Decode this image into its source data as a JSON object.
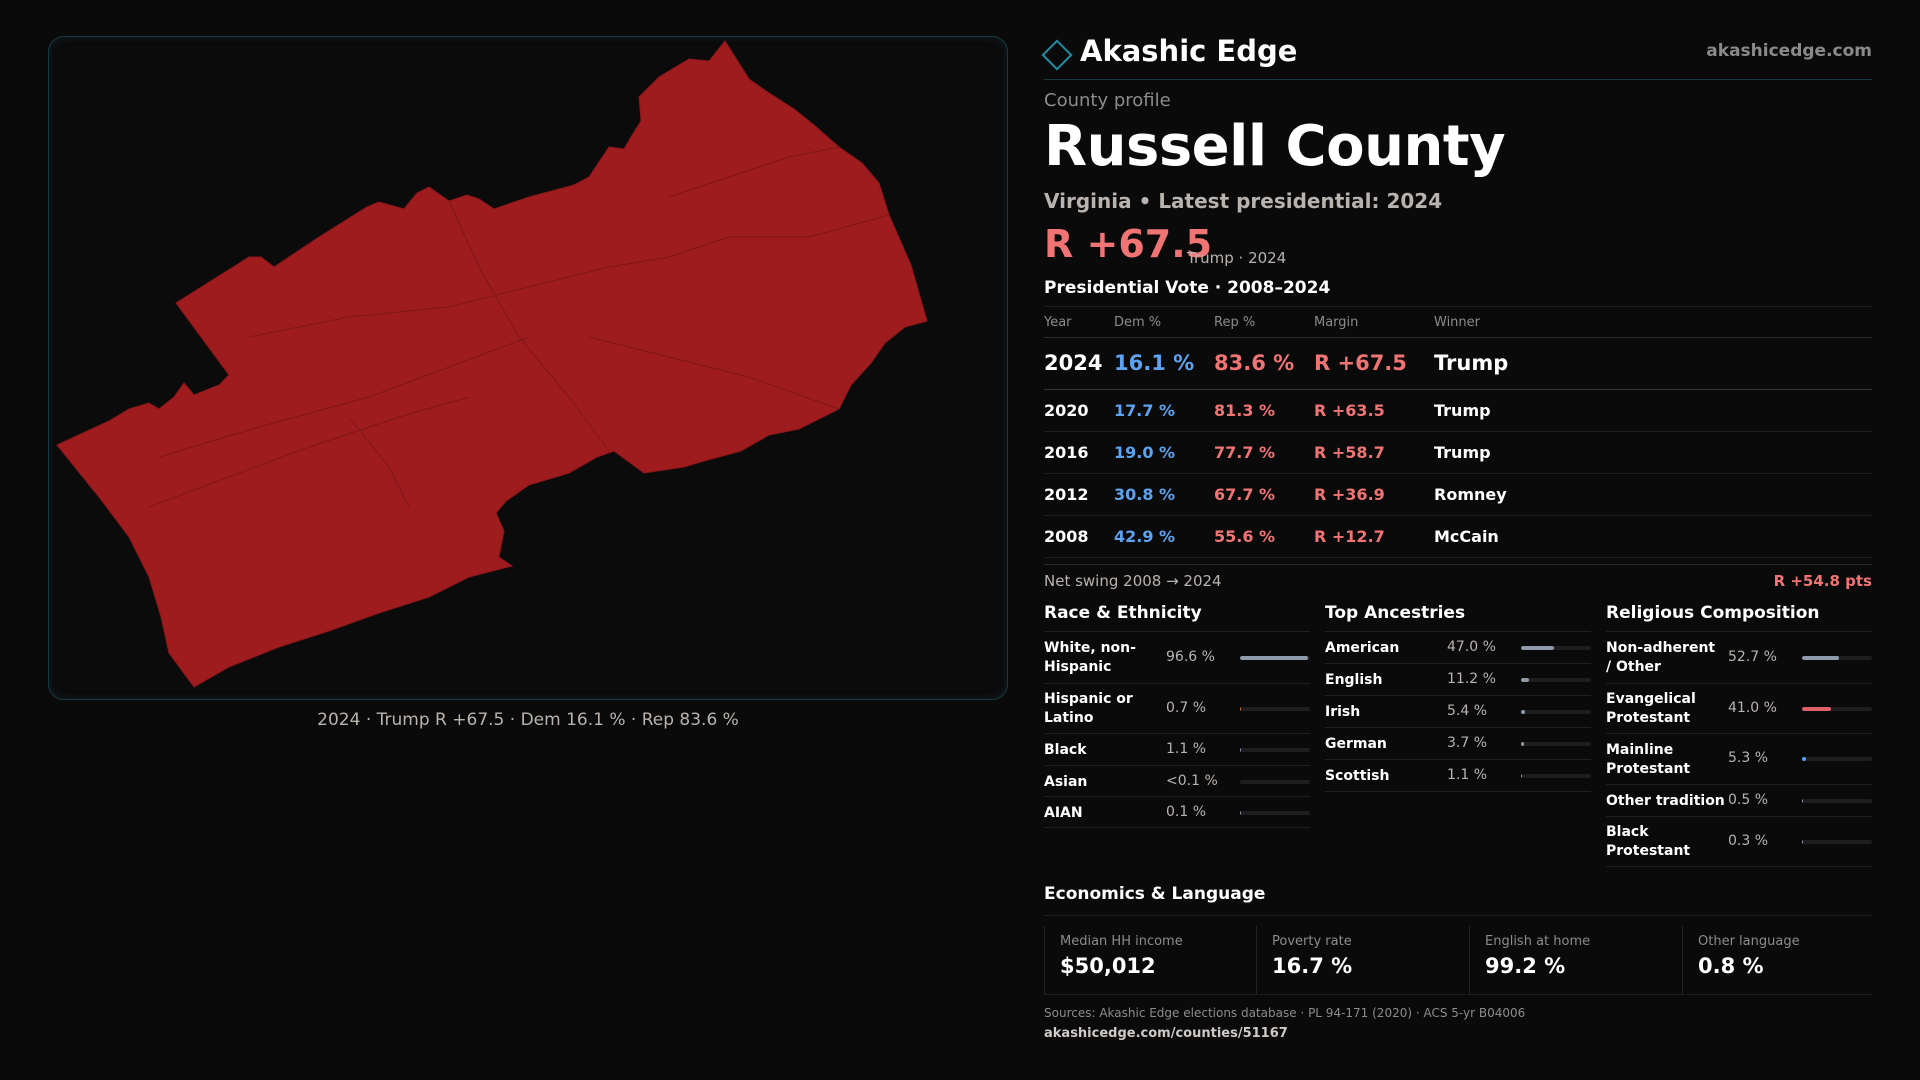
{
  "brand": {
    "name": "Akashic Edge",
    "url": "akashicedge.com"
  },
  "profile": {
    "eyebrow": "County profile",
    "county": "Russell County",
    "subline": "Virginia • Latest presidential: 2024",
    "margin": "R +67.5",
    "margin_note": "Trump · 2024"
  },
  "map": {
    "caption": "2024 · Trump R +67.5 · Dem 16.1 % · Rep 83.6 %",
    "fill_color": "#9e1b1e",
    "border_color": "#173a44"
  },
  "vote": {
    "title": "Presidential Vote · 2008–2024",
    "headers": {
      "year": "Year",
      "dem": "Dem %",
      "rep": "Rep %",
      "margin": "Margin",
      "winner": "Winner"
    },
    "rows": [
      {
        "year": "2024",
        "dem": "16.1 %",
        "rep": "83.6 %",
        "margin": "R +67.5",
        "winner": "Trump"
      },
      {
        "year": "2020",
        "dem": "17.7 %",
        "rep": "81.3 %",
        "margin": "R +63.5",
        "winner": "Trump"
      },
      {
        "year": "2016",
        "dem": "19.0 %",
        "rep": "77.7 %",
        "margin": "R +58.7",
        "winner": "Trump"
      },
      {
        "year": "2012",
        "dem": "30.8 %",
        "rep": "67.7 %",
        "margin": "R +36.9",
        "winner": "Romney"
      },
      {
        "year": "2008",
        "dem": "42.9 %",
        "rep": "55.6 %",
        "margin": "R +12.7",
        "winner": "McCain"
      }
    ],
    "swing_label": "Net swing 2008 → 2024",
    "swing_value": "R +54.8 pts"
  },
  "demographics": {
    "race": {
      "title": "Race & Ethnicity",
      "items": [
        {
          "label": "White, non-Hispanic",
          "value": "96.6 %",
          "fraction": 0.966,
          "color": "#8f9aad"
        },
        {
          "label": "Hispanic or Latino",
          "value": "0.7 %",
          "fraction": 0.007,
          "color": "#c9733a"
        },
        {
          "label": "Black",
          "value": "1.1 %",
          "fraction": 0.011,
          "color": "#8f9aad"
        },
        {
          "label": "Asian",
          "value": "<0.1 %",
          "fraction": 0.0,
          "color": "#8f9aad"
        },
        {
          "label": "AIAN",
          "value": "0.1 %",
          "fraction": 0.001,
          "color": "#8f9aad"
        }
      ]
    },
    "ancestry": {
      "title": "Top Ancestries",
      "items": [
        {
          "label": "American",
          "value": "47.0 %",
          "fraction": 0.47,
          "color": "#8f9aad"
        },
        {
          "label": "English",
          "value": "11.2 %",
          "fraction": 0.112,
          "color": "#8f9aad"
        },
        {
          "label": "Irish",
          "value": "5.4 %",
          "fraction": 0.054,
          "color": "#8f9aad"
        },
        {
          "label": "German",
          "value": "3.7 %",
          "fraction": 0.037,
          "color": "#8f9aad"
        },
        {
          "label": "Scottish",
          "value": "1.1 %",
          "fraction": 0.011,
          "color": "#8f9aad"
        }
      ]
    },
    "religion": {
      "title": "Religious Composition",
      "items": [
        {
          "label": "Non-adherent / Other",
          "value": "52.7 %",
          "fraction": 0.527,
          "color": "#8f9aad"
        },
        {
          "label": "Evangelical Protestant",
          "value": "41.0 %",
          "fraction": 0.41,
          "color": "#e0606a"
        },
        {
          "label": "Mainline Protestant",
          "value": "5.3 %",
          "fraction": 0.053,
          "color": "#5ea3f0"
        },
        {
          "label": "Other tradition",
          "value": "0.5 %",
          "fraction": 0.005,
          "color": "#8f9aad"
        },
        {
          "label": "Black Protestant",
          "value": "0.3 %",
          "fraction": 0.003,
          "color": "#8f9aad"
        }
      ]
    }
  },
  "economics": {
    "title": "Economics & Language",
    "boxes": [
      {
        "label": "Median HH income",
        "value": "$50,012"
      },
      {
        "label": "Poverty rate",
        "value": "16.7 %"
      },
      {
        "label": "English at home",
        "value": "99.2 %"
      },
      {
        "label": "Other language",
        "value": "0.8 %"
      }
    ]
  },
  "footer": {
    "sources": "Sources: Akashic Edge elections database · PL 94-171 (2020) · ACS 5-yr B04006",
    "url": "akashicedge.com/counties/51167"
  }
}
